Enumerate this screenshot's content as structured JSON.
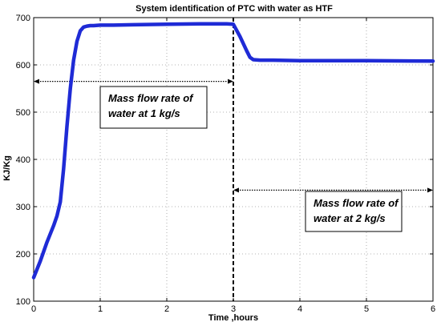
{
  "chart_data": {
    "type": "line",
    "title": "System identification of PTC with water as HTF",
    "xlabel": "Time ,hours",
    "ylabel": "KJ/Kg",
    "xlim": [
      0,
      6
    ],
    "ylim": [
      100,
      700
    ],
    "xticks": [
      0,
      1,
      2,
      3,
      4,
      5,
      6
    ],
    "yticks": [
      100,
      200,
      300,
      400,
      500,
      600,
      700
    ],
    "x_tick_labels": [
      "0",
      "1",
      "2",
      "3",
      "4",
      "5",
      "6"
    ],
    "y_tick_labels": [
      "100",
      "200",
      "300",
      "400",
      "500",
      "600",
      "700"
    ],
    "grid": true,
    "series": [
      {
        "color": "#1f2bd6",
        "x": [
          0,
          0.1,
          0.2,
          0.3,
          0.35,
          0.4,
          0.45,
          0.5,
          0.55,
          0.6,
          0.65,
          0.7,
          0.75,
          0.8,
          0.85,
          0.9,
          1.0,
          1.2,
          1.5,
          2.0,
          2.5,
          2.9,
          3.0,
          3.1,
          3.2,
          3.25,
          3.3,
          3.4,
          3.6,
          4.0,
          5.0,
          6.0
        ],
        "y": [
          150,
          185,
          225,
          260,
          280,
          310,
          380,
          470,
          550,
          610,
          650,
          672,
          680,
          682,
          683,
          683,
          684,
          684,
          685,
          686,
          687,
          687,
          686,
          660,
          630,
          616,
          611,
          610,
          610,
          609,
          609,
          608
        ]
      }
    ],
    "vline": {
      "x": 3.0,
      "style": "dashed",
      "color": "#000000"
    },
    "annotations": [
      {
        "lines": [
          "Mass flow rate of",
          "water at 1 kg/s"
        ],
        "arrow_x": [
          0,
          3
        ],
        "arrow_y": 565
      },
      {
        "lines": [
          "Mass flow rate of",
          "water at 2 kg/s"
        ],
        "arrow_x": [
          3,
          6
        ],
        "arrow_y": 335
      }
    ]
  }
}
